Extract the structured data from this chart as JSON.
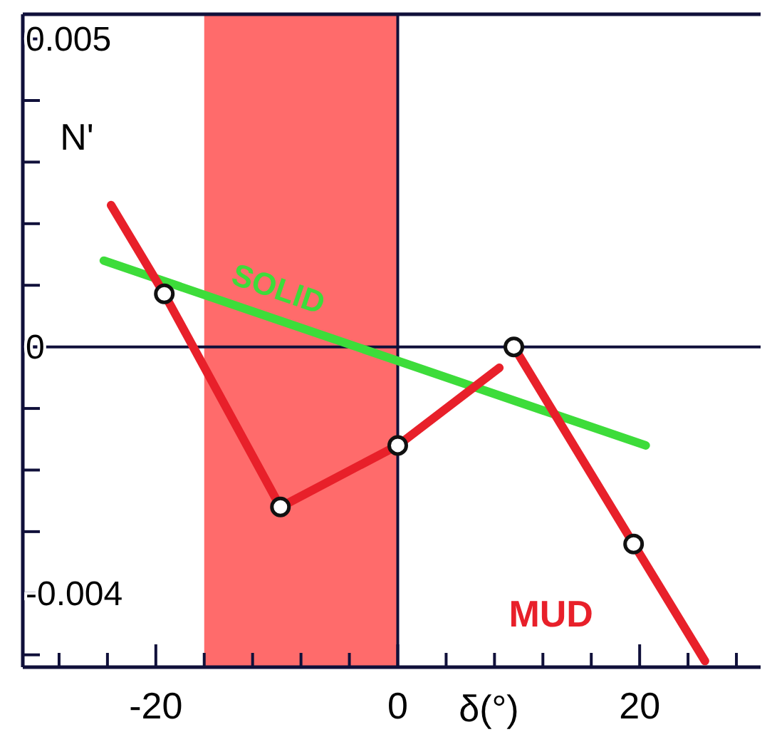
{
  "chart_data": {
    "type": "line",
    "xlabel": "δ(°)",
    "ylabel": "N'",
    "xlim": [
      -31,
      30
    ],
    "ylim": [
      -0.0052,
      0.0054
    ],
    "xticks": [
      {
        "value": -28,
        "label": null
      },
      {
        "value": -24,
        "label": null
      },
      -20,
      {
        "value": -16,
        "label": null
      },
      {
        "value": -12,
        "label": null
      },
      {
        "value": -8,
        "label": null
      },
      {
        "value": -4,
        "label": null
      },
      0,
      {
        "value": 4,
        "label": null
      },
      {
        "value": 8,
        "label": null
      },
      {
        "value": 12,
        "label": null
      },
      {
        "value": 16,
        "label": null
      },
      20,
      {
        "value": 24,
        "label": null
      },
      {
        "value": 28,
        "label": null
      }
    ],
    "yticks": [
      {
        "value": -0.005,
        "label": null
      },
      -0.004,
      {
        "value": -0.003,
        "label": null
      },
      {
        "value": -0.002,
        "label": null
      },
      {
        "value": -0.001,
        "label": null
      },
      0,
      {
        "value": 0.001,
        "label": null
      },
      {
        "value": 0.002,
        "label": null
      },
      {
        "value": 0.003,
        "label": null
      },
      {
        "value": 0.004,
        "label": null
      },
      0.005
    ],
    "bands": [
      {
        "axis": "x",
        "from": -16,
        "to": 0,
        "color": "#ff6b6b"
      }
    ],
    "series": [
      {
        "name": "SOLID",
        "color": "#3ddc3a",
        "x": [
          -24.3,
          20.5
        ],
        "values": [
          0.0014,
          -0.0016
        ]
      },
      {
        "color": "#e8202a",
        "x": [
          -23.7,
          -19.3,
          -9.7,
          0,
          8.4
        ],
        "values": [
          0.0023,
          0.00086,
          -0.0026,
          -0.0016,
          -0.00034
        ]
      },
      {
        "name": "MUD",
        "color": "#e8202a",
        "x": [
          9.6,
          19.5,
          25.4
        ],
        "values": [
          0,
          -0.0032,
          -0.0051
        ]
      },
      {
        "type": "scatter",
        "marker": "circle",
        "color": "#111111",
        "x": [
          -19.3,
          -9.7,
          0,
          9.6,
          19.5
        ],
        "values": [
          0.00086,
          -0.0026,
          -0.0016,
          0,
          -0.0032
        ]
      }
    ]
  }
}
